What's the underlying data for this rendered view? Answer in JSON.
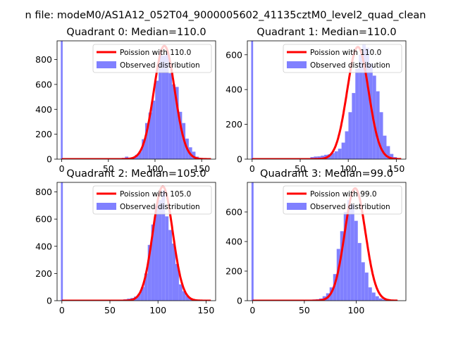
{
  "suptitle": "n file: modeM0/AS1A12_052T04_9000005602_41135cztM0_level2_quad_clean",
  "colors": {
    "hist": "#8080ff",
    "fit": "#ff0000",
    "axis": "#000000",
    "background": "#ffffff"
  },
  "chart_data": [
    {
      "type": "bar",
      "title": "Quadrant 0: Median=110.0",
      "xlim": [
        -5,
        165
      ],
      "ylim": [
        0,
        950
      ],
      "xticks": [
        0,
        50,
        100,
        150
      ],
      "yticks": [
        0,
        200,
        400,
        600,
        800
      ],
      "legend": {
        "location": "top-right",
        "fit_label": "Poission with 110.0",
        "hist_label": "Observed distribution"
      },
      "fit": {
        "label": "Poission with 110.0",
        "mean": 110,
        "peak": 910,
        "sigma": 11.2,
        "x_range": [
          0,
          160
        ]
      },
      "spike": {
        "x": 0,
        "value": 950
      },
      "bins": {
        "start": 3,
        "width": 3.6,
        "values": [
          0,
          0,
          0,
          0,
          0,
          0,
          0,
          0,
          0,
          0,
          0,
          0,
          0,
          0,
          0,
          0,
          5,
          10,
          20,
          12,
          15,
          35,
          60,
          160,
          290,
          375,
          470,
          630,
          860,
          830,
          850,
          690,
          600,
          580,
          380,
          290,
          165,
          95,
          60,
          20,
          10,
          5,
          3,
          0,
          0,
          0
        ]
      }
    },
    {
      "type": "bar",
      "title": "Quadrant 1: Median=110.0",
      "xlim": [
        -5,
        160
      ],
      "ylim": [
        0,
        680
      ],
      "xticks": [
        0,
        50,
        100,
        150
      ],
      "yticks": [
        0,
        200,
        400,
        600
      ],
      "legend": {
        "location": "top-right",
        "fit_label": "Poission with 110.0",
        "hist_label": "Observed distribution"
      },
      "fit": {
        "label": "Poission with 110.0",
        "mean": 110,
        "peak": 645,
        "sigma": 11.2,
        "x_range": [
          0,
          155
        ]
      },
      "spike": {
        "x": 0,
        "value": 680
      },
      "bins": {
        "start": 3,
        "width": 3.6,
        "values": [
          0,
          0,
          0,
          0,
          0,
          0,
          0,
          0,
          0,
          0,
          0,
          0,
          0,
          0,
          0,
          0,
          12,
          15,
          16,
          20,
          25,
          28,
          35,
          45,
          60,
          95,
          160,
          270,
          380,
          520,
          600,
          660,
          640,
          550,
          480,
          390,
          270,
          135,
          75,
          30,
          12,
          5,
          0,
          0
        ]
      }
    },
    {
      "type": "bar",
      "title": "Quadrant 2: Median=105.0",
      "xlim": [
        -5,
        160
      ],
      "ylim": [
        0,
        870
      ],
      "xticks": [
        0,
        50,
        100,
        150
      ],
      "yticks": [
        0,
        200,
        400,
        600,
        800
      ],
      "legend": {
        "location": "top-right",
        "fit_label": "Poission with 105.0",
        "hist_label": "Observed distribution"
      },
      "fit": {
        "label": "Poission with 105.0",
        "mean": 105,
        "peak": 840,
        "sigma": 10.3,
        "x_range": [
          0,
          155
        ]
      },
      "spike": {
        "x": 0,
        "value": 870
      },
      "bins": {
        "start": 3,
        "width": 3.6,
        "values": [
          0,
          0,
          0,
          0,
          0,
          0,
          0,
          0,
          0,
          0,
          0,
          0,
          0,
          0,
          0,
          0,
          5,
          10,
          15,
          20,
          30,
          50,
          100,
          200,
          410,
          560,
          700,
          740,
          810,
          620,
          520,
          420,
          270,
          120,
          70,
          35,
          15,
          8,
          5,
          3,
          0,
          0
        ]
      }
    },
    {
      "type": "bar",
      "title": "Quadrant 3: Median=99.0",
      "xlim": [
        -5,
        148
      ],
      "ylim": [
        0,
        800
      ],
      "xticks": [
        0,
        50,
        100
      ],
      "yticks": [
        0,
        200,
        400,
        600
      ],
      "legend": {
        "location": "top-right",
        "fit_label": "Poission with 99.0",
        "hist_label": "Observed distribution"
      },
      "fit": {
        "label": "Poission with 99.0",
        "mean": 99,
        "peak": 760,
        "sigma": 10.0,
        "x_range": [
          0,
          140
        ]
      },
      "spike": {
        "x": 0,
        "value": 800
      },
      "bins": {
        "start": 3,
        "width": 3.4,
        "values": [
          0,
          0,
          0,
          0,
          0,
          0,
          0,
          0,
          0,
          0,
          0,
          0,
          0,
          0,
          0,
          5,
          8,
          10,
          15,
          30,
          50,
          90,
          180,
          350,
          470,
          600,
          680,
          650,
          540,
          390,
          260,
          190,
          90,
          55,
          30,
          15,
          8,
          5,
          0,
          0
        ]
      }
    }
  ]
}
